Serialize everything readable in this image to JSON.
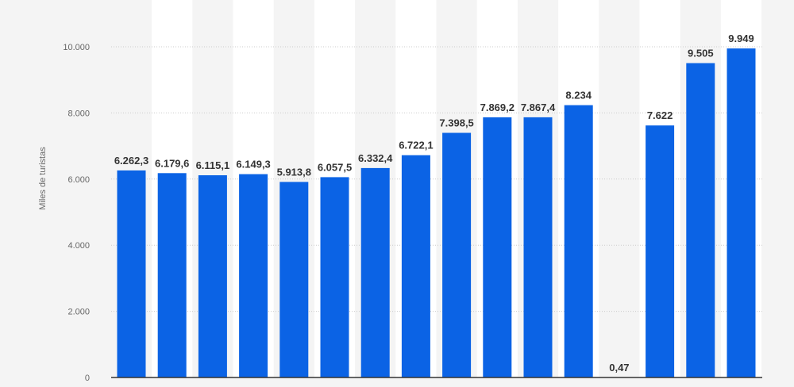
{
  "chart_data": {
    "type": "bar",
    "ylabel": "Miles de turistas",
    "xlabel": "",
    "ylim": [
      0,
      11000
    ],
    "y_ticks": [
      0,
      2000,
      4000,
      6000,
      8000,
      10000
    ],
    "y_tick_labels": [
      "0",
      "2.000",
      "4.000",
      "6.000",
      "8.000",
      "10.000"
    ],
    "grid": true,
    "categories": [
      "",
      "",
      "",
      "",
      "",
      "",
      "",
      "",
      "",
      "",
      "",
      "",
      "",
      "",
      "",
      ""
    ],
    "values": [
      6262.3,
      6179.6,
      6115.1,
      6149.3,
      5913.8,
      6057.5,
      6332.4,
      6722.1,
      7398.5,
      7869.2,
      7867.4,
      8234,
      0.47,
      7622,
      9505,
      9949
    ],
    "value_labels": [
      "6.262,3",
      "6.179,6",
      "6.115,1",
      "6.149,3",
      "5.913,8",
      "6.057,5",
      "6.332,4",
      "6.722,1",
      "7.398,5",
      "7.869,2",
      "7.867,4",
      "8.234",
      "0,47",
      "7.622",
      "9.505",
      "9.949"
    ],
    "colors": {
      "bar": "#0b63e5",
      "column_band": "#ffffff",
      "background": "#f4f4f4",
      "grid": "#cccccc",
      "axis": "#333333",
      "tick_text": "#666666",
      "label_text": "#333333"
    }
  }
}
